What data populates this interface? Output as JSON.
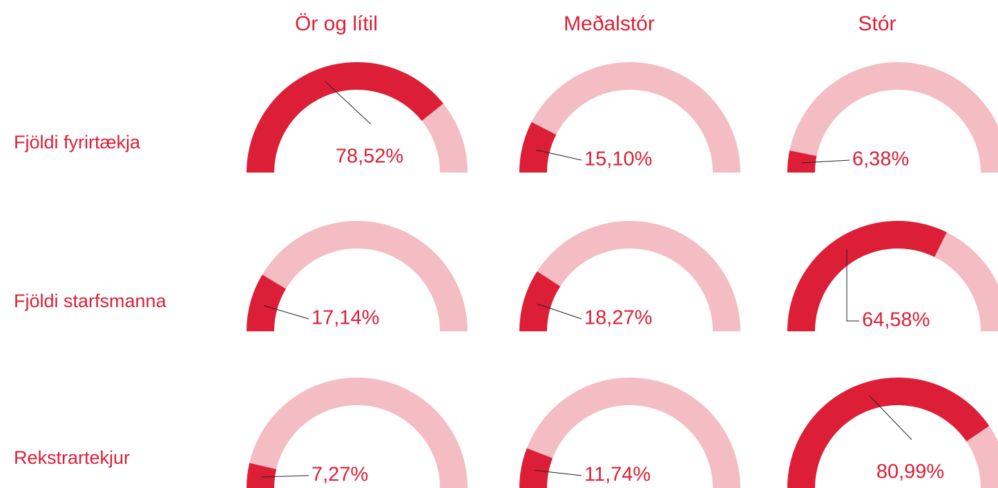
{
  "chart_data": {
    "type": "gauge",
    "categories": [
      "Ör og lítil",
      "Meðalstór",
      "Stór"
    ],
    "series": [
      {
        "name": "Fjöldi fyrirtækja",
        "values": [
          78.52,
          15.1,
          6.38
        ],
        "value_labels": [
          "78,52%",
          "15,10%",
          "6,38%"
        ]
      },
      {
        "name": "Fjöldi starfsmanna",
        "values": [
          17.14,
          18.27,
          64.58
        ],
        "value_labels": [
          "17,14%",
          "18,27%",
          "64,58%"
        ]
      },
      {
        "name": "Rekstrartekjur",
        "values": [
          7.27,
          11.74,
          80.99
        ],
        "value_labels": [
          "7,27%",
          "11,74%",
          "80,99%"
        ]
      }
    ],
    "ylim": [
      0,
      100
    ],
    "color": "#dc1f36",
    "track_color": "#f4bcc3"
  }
}
